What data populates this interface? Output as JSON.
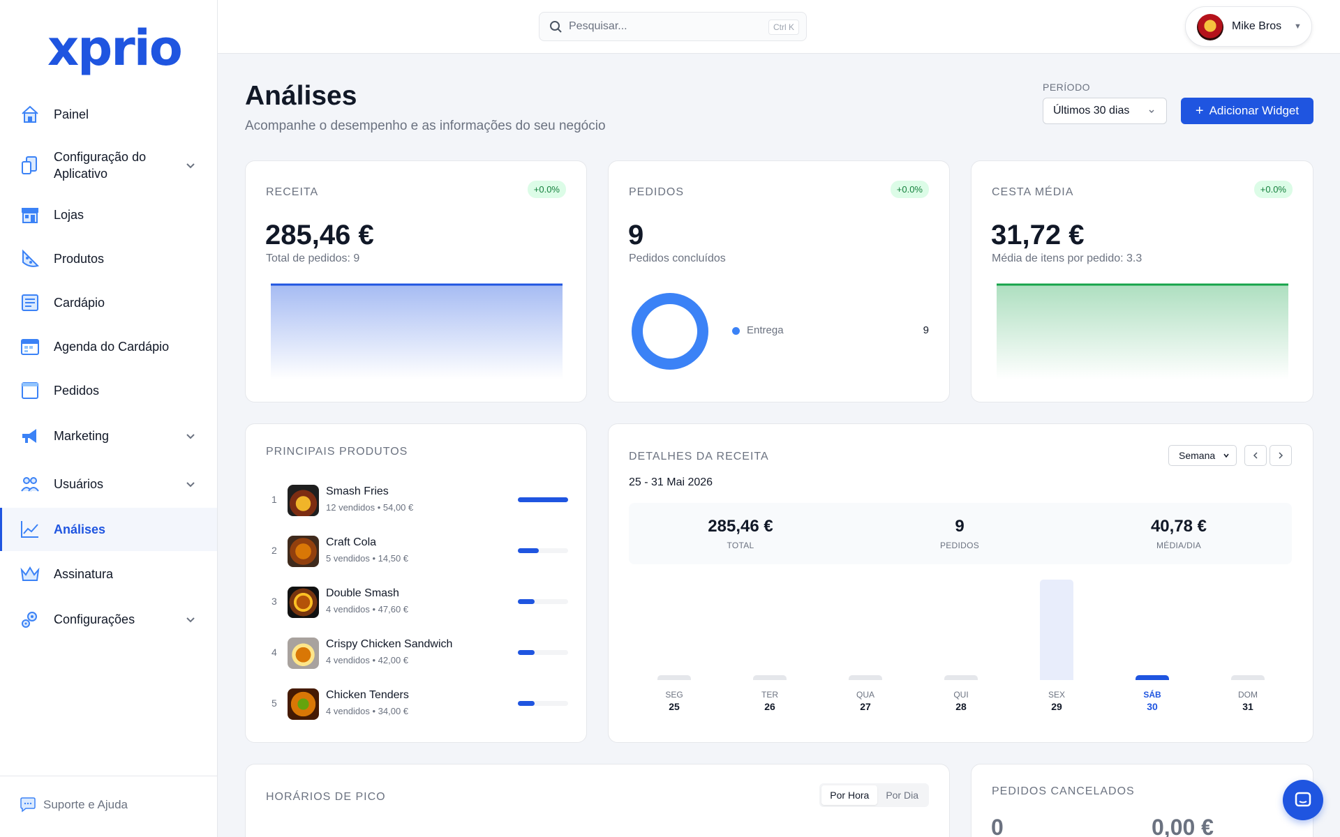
{
  "app": {
    "logo": "xprio"
  },
  "sidebar": {
    "items": [
      {
        "label": "Painel",
        "icon": "home-icon"
      },
      {
        "label": "Configuração do Aplicativo",
        "icon": "app-config-icon",
        "expandable": true
      },
      {
        "label": "Lojas",
        "icon": "store-icon"
      },
      {
        "label": "Produtos",
        "icon": "pizza-icon"
      },
      {
        "label": "Cardápio",
        "icon": "menu-icon"
      },
      {
        "label": "Agenda do Cardápio",
        "icon": "calendar-icon"
      },
      {
        "label": "Pedidos",
        "icon": "orders-icon"
      },
      {
        "label": "Marketing",
        "icon": "megaphone-icon",
        "expandable": true
      },
      {
        "label": "Usuários",
        "icon": "users-icon",
        "expandable": true
      },
      {
        "label": "Análises",
        "icon": "chart-line-icon",
        "active": true
      },
      {
        "label": "Assinatura",
        "icon": "crown-icon"
      },
      {
        "label": "Configurações",
        "icon": "gear-icon",
        "expandable": true
      }
    ],
    "support": "Suporte e Ajuda"
  },
  "topbar": {
    "search_placeholder": "Pesquisar...",
    "search_shortcut": "Ctrl K",
    "user_name": "Mike Bros"
  },
  "header": {
    "title": "Análises",
    "subtitle": "Acompanhe o desempenho e as informações do seu negócio",
    "period_label": "PERÍODO",
    "period_value": "Últimos 30 dias",
    "add_widget": "Adicionar Widget"
  },
  "kpis": {
    "revenue": {
      "label": "RECEITA",
      "delta": "+0.0%",
      "value": "285,46 €",
      "sub": "Total de pedidos: 9",
      "accent": "#1f55e0"
    },
    "orders": {
      "label": "PEDIDOS",
      "delta": "+0.0%",
      "value": "9",
      "sub": "Pedidos concluídos",
      "legend": [
        {
          "name": "Entrega",
          "value": "9",
          "color": "#3b82f6"
        }
      ]
    },
    "basket": {
      "label": "CESTA MÉDIA",
      "delta": "+0.0%",
      "value": "31,72 €",
      "sub": "Média de itens por pedido: 3.3",
      "accent": "#16a34a"
    }
  },
  "top_products": {
    "title": "PRINCIPAIS PRODUTOS",
    "items": [
      {
        "rank": "1",
        "name": "Smash Fries",
        "meta": "12 vendidos • 54,00 €",
        "share": 1.0
      },
      {
        "rank": "2",
        "name": "Craft Cola",
        "meta": "5 vendidos • 14,50 €",
        "share": 0.42
      },
      {
        "rank": "3",
        "name": "Double Smash",
        "meta": "4 vendidos • 47,60 €",
        "share": 0.33
      },
      {
        "rank": "4",
        "name": "Crispy Chicken Sandwich",
        "meta": "4 vendidos • 42,00 €",
        "share": 0.33
      },
      {
        "rank": "5",
        "name": "Chicken Tenders",
        "meta": "4 vendidos • 34,00 €",
        "share": 0.33
      }
    ]
  },
  "revenue_details": {
    "title": "DETALHES DA RECEITA",
    "range": "25 - 31 Mai 2026",
    "granularity": "Semana",
    "summary": [
      {
        "value": "285,46 €",
        "label": "TOTAL"
      },
      {
        "value": "9",
        "label": "PEDIDOS"
      },
      {
        "value": "40,78 €",
        "label": "MÉDIA/DIA"
      }
    ]
  },
  "chart_data": {
    "type": "bar",
    "categories": [
      "SEG 25",
      "TER 26",
      "QUA 27",
      "QUI 28",
      "SEX 29",
      "SÁB 30",
      "DOM 31"
    ],
    "days": [
      "SEG",
      "TER",
      "QUA",
      "QUI",
      "SEX",
      "SÁB",
      "DOM"
    ],
    "dates": [
      "25",
      "26",
      "27",
      "28",
      "29",
      "30",
      "31"
    ],
    "values": [
      0,
      0,
      0,
      0,
      285.46,
      0,
      0
    ],
    "selected_index": 5,
    "title": "DETALHES DA RECEITA",
    "xlabel": "",
    "ylabel": ""
  },
  "peak_hours": {
    "title": "HORÁRIOS DE PICO",
    "tabs": [
      "Por Hora",
      "Por Dia"
    ],
    "active": "Por Hora"
  },
  "cancelled": {
    "title": "PEDIDOS CANCELADOS",
    "count": "0",
    "amount": "0,00 €"
  }
}
